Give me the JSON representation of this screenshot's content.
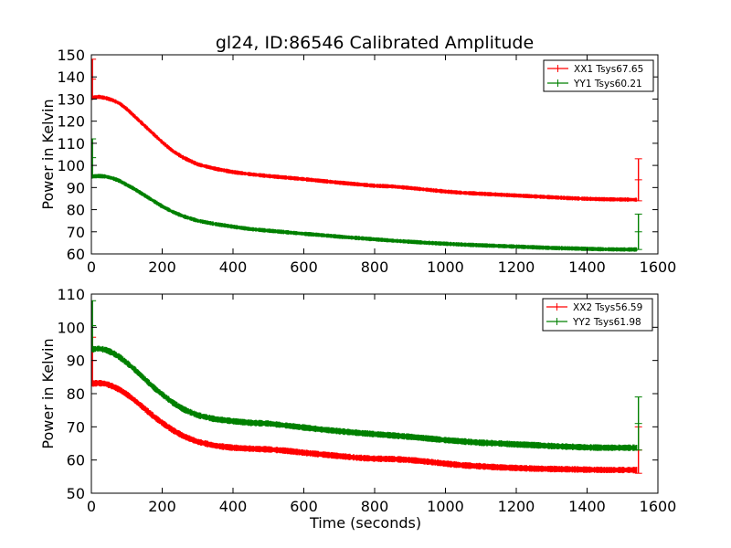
{
  "title": "gl24, ID:86546 Calibrated Amplitude",
  "chart_data": [
    {
      "type": "line",
      "title": "gl24, ID:86546 Calibrated Amplitude",
      "xlabel": "",
      "ylabel": "Power in Kelvin",
      "xlim": [
        0,
        1600
      ],
      "ylim": [
        60,
        150
      ],
      "xticks": [
        "0",
        "200",
        "400",
        "600",
        "800",
        "1000",
        "1200",
        "1400",
        "1600"
      ],
      "yticks": [
        "60",
        "70",
        "80",
        "90",
        "100",
        "110",
        "120",
        "130",
        "140",
        "150"
      ],
      "legend_position": "top-right",
      "grid": false,
      "series": [
        {
          "name": "XX1 Tsys67.65",
          "color": "#ff0000",
          "x": [
            0,
            20,
            40,
            60,
            80,
            100,
            120,
            150,
            180,
            200,
            230,
            260,
            300,
            350,
            400,
            450,
            500,
            550,
            600,
            650,
            700,
            750,
            800,
            850,
            900,
            950,
            1000,
            1050,
            1100,
            1150,
            1200,
            1250,
            1300,
            1350,
            1400,
            1450,
            1500,
            1540
          ],
          "y": [
            130.5,
            131,
            130.5,
            129.5,
            128,
            125.5,
            122.5,
            118,
            113.5,
            110.5,
            106.5,
            103.5,
            100.5,
            98.5,
            97,
            96,
            95.2,
            94.5,
            93.8,
            93,
            92.2,
            91.5,
            90.8,
            90.5,
            89.8,
            89,
            88.2,
            87.6,
            87.2,
            86.8,
            86.4,
            86,
            85.6,
            85.2,
            84.9,
            84.7,
            84.6,
            84.5
          ],
          "errorbar_spikes": [
            {
              "x": 3,
              "low": 130,
              "high": 148
            },
            {
              "x": 1545,
              "low": 84,
              "high": 103
            }
          ]
        },
        {
          "name": "YY1 Tsys60.21",
          "color": "#008000",
          "x": [
            0,
            20,
            40,
            60,
            80,
            100,
            120,
            150,
            180,
            200,
            230,
            260,
            300,
            350,
            400,
            450,
            500,
            550,
            600,
            650,
            700,
            750,
            800,
            850,
            900,
            950,
            1000,
            1050,
            1100,
            1150,
            1200,
            1250,
            1300,
            1350,
            1400,
            1450,
            1500,
            1540
          ],
          "y": [
            95,
            95.2,
            95,
            94.2,
            93,
            91.2,
            89.5,
            86.5,
            83.5,
            81.5,
            79,
            77,
            75,
            73.5,
            72.3,
            71.2,
            70.5,
            69.8,
            69.1,
            68.5,
            67.8,
            67.2,
            66.6,
            66,
            65.5,
            65,
            64.6,
            64.2,
            63.9,
            63.6,
            63.3,
            63,
            62.7,
            62.5,
            62.3,
            62.1,
            62,
            62
          ],
          "errorbar_spikes": [
            {
              "x": 3,
              "low": 95,
              "high": 112
            },
            {
              "x": 1545,
              "low": 62,
              "high": 78
            }
          ]
        }
      ]
    },
    {
      "type": "line",
      "title": "",
      "xlabel": "Time (seconds)",
      "ylabel": "Power in Kelvin",
      "xlim": [
        0,
        1600
      ],
      "ylim": [
        50,
        110
      ],
      "xticks": [
        "0",
        "200",
        "400",
        "600",
        "800",
        "1000",
        "1200",
        "1400",
        "1600"
      ],
      "yticks": [
        "50",
        "60",
        "70",
        "80",
        "90",
        "100",
        "110"
      ],
      "legend_position": "top-right",
      "grid": false,
      "series": [
        {
          "name": "XX2 Tsys56.59",
          "color": "#ff0000",
          "x": [
            0,
            20,
            40,
            60,
            80,
            100,
            120,
            150,
            180,
            200,
            230,
            260,
            300,
            350,
            400,
            450,
            500,
            550,
            600,
            650,
            700,
            750,
            800,
            850,
            900,
            950,
            1000,
            1050,
            1100,
            1150,
            1200,
            1250,
            1300,
            1350,
            1400,
            1450,
            1500,
            1540
          ],
          "y": [
            83,
            83.2,
            83,
            82.2,
            81.2,
            79.8,
            78.2,
            75.5,
            72.8,
            71.2,
            69,
            67.2,
            65.5,
            64.3,
            63.7,
            63.4,
            63.2,
            62.8,
            62.2,
            61.7,
            61.2,
            60.7,
            60.4,
            60.3,
            60,
            59.5,
            58.9,
            58.4,
            58.1,
            57.8,
            57.6,
            57.4,
            57.3,
            57.2,
            57.1,
            57,
            57,
            57
          ],
          "errorbar_spikes": [
            {
              "x": 3,
              "low": 83,
              "high": 97
            },
            {
              "x": 1545,
              "low": 56,
              "high": 70
            }
          ]
        },
        {
          "name": "YY2 Tsys61.98",
          "color": "#008000",
          "x": [
            0,
            20,
            40,
            60,
            80,
            100,
            120,
            150,
            180,
            200,
            230,
            260,
            300,
            350,
            400,
            450,
            500,
            550,
            600,
            650,
            700,
            750,
            800,
            850,
            900,
            950,
            1000,
            1050,
            1100,
            1150,
            1200,
            1250,
            1300,
            1350,
            1400,
            1450,
            1500,
            1540
          ],
          "y": [
            93.3,
            93.6,
            93.2,
            92.3,
            91,
            89.3,
            87.5,
            84.5,
            81.5,
            79.8,
            77.3,
            75.3,
            73.5,
            72.3,
            71.7,
            71.2,
            71,
            70.4,
            69.8,
            69.2,
            68.7,
            68.2,
            67.8,
            67.4,
            67,
            66.5,
            66,
            65.6,
            65.2,
            65,
            64.7,
            64.5,
            64.2,
            64,
            63.8,
            63.7,
            63.7,
            63.7
          ],
          "errorbar_spikes": [
            {
              "x": 3,
              "low": 93,
              "high": 108
            },
            {
              "x": 1545,
              "low": 63,
              "high": 79
            }
          ]
        }
      ]
    }
  ]
}
